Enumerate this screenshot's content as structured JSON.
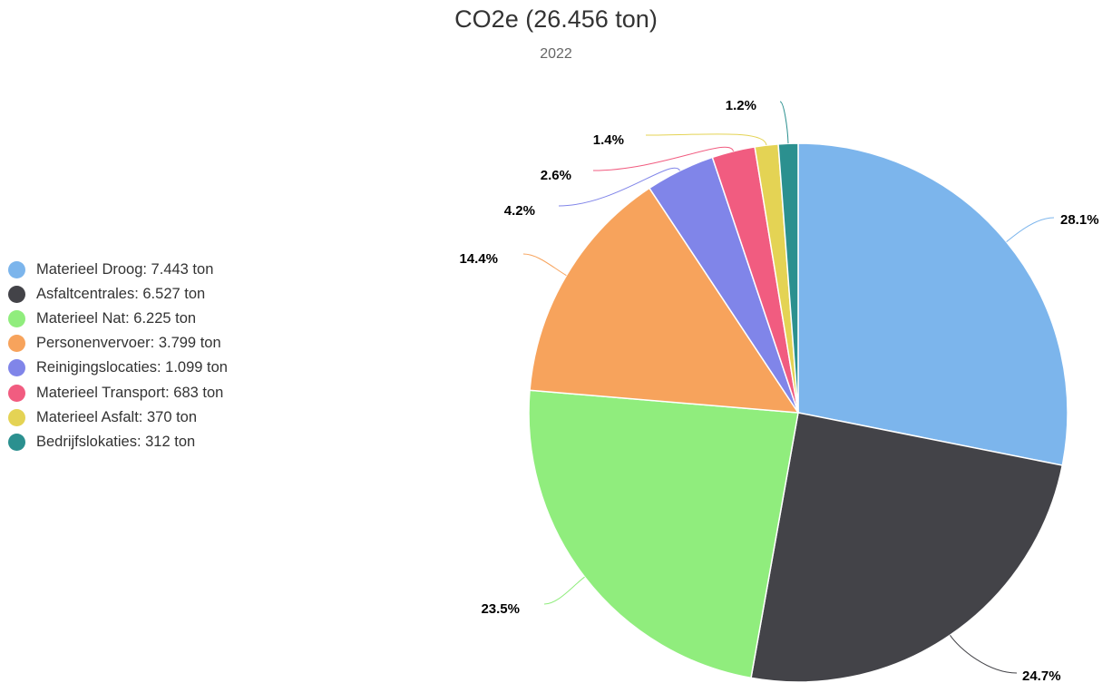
{
  "chart_data": {
    "type": "pie",
    "title": "CO2e (26.456 ton)",
    "subtitle": "2022",
    "unit": "ton",
    "legend_position": "left",
    "slices": [
      {
        "name": "Materieel Droog",
        "value": 7443,
        "legend": "Materieel Droog: 7.443 ton",
        "label": "28.1%",
        "color": "#7cb5ec"
      },
      {
        "name": "Asfaltcentrales",
        "value": 6527,
        "legend": "Asfaltcentrales: 6.527 ton",
        "label": "24.7%",
        "color": "#434348"
      },
      {
        "name": "Materieel Nat",
        "value": 6225,
        "legend": "Materieel Nat: 6.225 ton",
        "label": "23.5%",
        "color": "#90ed7d"
      },
      {
        "name": "Personenvervoer",
        "value": 3799,
        "legend": "Personenvervoer: 3.799 ton",
        "label": "14.4%",
        "color": "#f7a35c"
      },
      {
        "name": "Reinigingslocaties",
        "value": 1099,
        "legend": "Reinigingslocaties: 1.099 ton",
        "label": "4.2%",
        "color": "#8085e9"
      },
      {
        "name": "Materieel Transport",
        "value": 683,
        "legend": "Materieel Transport: 683 ton",
        "label": "2.6%",
        "color": "#f15c80"
      },
      {
        "name": "Materieel Asfalt",
        "value": 370,
        "legend": "Materieel Asfalt: 370 ton",
        "label": "1.4%",
        "color": "#e4d354"
      },
      {
        "name": "Bedrijfslokaties",
        "value": 312,
        "legend": "Bedrijfslokaties: 312 ton",
        "label": "1.2%",
        "color": "#2b908f"
      }
    ]
  }
}
